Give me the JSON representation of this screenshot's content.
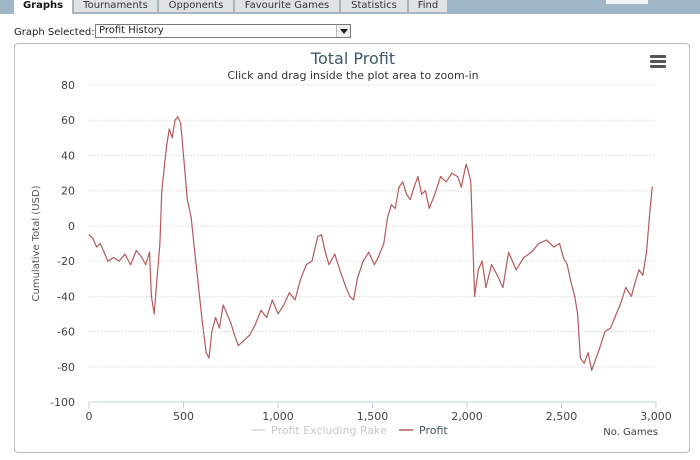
{
  "tabs": [
    {
      "label": "Graphs",
      "active": true
    },
    {
      "label": "Tournaments",
      "active": false
    },
    {
      "label": "Opponents",
      "active": false
    },
    {
      "label": "Favourite Games",
      "active": false
    },
    {
      "label": "Statistics",
      "active": false
    },
    {
      "label": "Find",
      "active": false
    }
  ],
  "graph_select": {
    "label": "Graph Selected:",
    "value": "Profit History"
  },
  "menu_icon": "hamburger-menu-icon",
  "colors": {
    "profit_line": "#b55a5a",
    "profit_excl_rake_line": "#d9d9d9",
    "title": "#3e576f",
    "tabbar": "#9fb7c6"
  },
  "chart_data": {
    "type": "line",
    "title": "Total Profit",
    "subtitle": "Click and drag inside the plot area to zoom-in",
    "xlabel": "No. Games",
    "ylabel": "Cumulative Total (USD)",
    "xlim": [
      0,
      3000
    ],
    "ylim": [
      -100,
      80
    ],
    "x_ticks": [
      "0",
      "500",
      "1,000",
      "1,500",
      "2,000",
      "2,500",
      "3,000"
    ],
    "y_ticks": [
      "80",
      "60",
      "40",
      "20",
      "0",
      "-20",
      "-40",
      "-60",
      "-80",
      "-100"
    ],
    "grid": "horizontal",
    "legend_position": "bottom-center",
    "series": [
      {
        "name": "Profit Excluding Rake",
        "visible": false,
        "x": [],
        "y": []
      },
      {
        "name": "Profit",
        "visible": true,
        "x": [
          0,
          20,
          40,
          60,
          80,
          100,
          130,
          160,
          190,
          220,
          250,
          280,
          300,
          320,
          330,
          345,
          360,
          375,
          385,
          395,
          410,
          425,
          440,
          455,
          470,
          485,
          500,
          520,
          540,
          560,
          580,
          600,
          620,
          635,
          650,
          670,
          690,
          710,
          730,
          750,
          770,
          790,
          820,
          850,
          880,
          910,
          940,
          970,
          1000,
          1030,
          1060,
          1090,
          1120,
          1150,
          1180,
          1210,
          1230,
          1250,
          1270,
          1300,
          1330,
          1360,
          1380,
          1400,
          1420,
          1450,
          1480,
          1510,
          1530,
          1560,
          1580,
          1600,
          1620,
          1640,
          1660,
          1680,
          1700,
          1720,
          1740,
          1760,
          1780,
          1800,
          1830,
          1860,
          1890,
          1920,
          1950,
          1970,
          1985,
          1995,
          2005,
          2020,
          2040,
          2060,
          2080,
          2100,
          2130,
          2160,
          2190,
          2220,
          2260,
          2300,
          2340,
          2380,
          2420,
          2460,
          2490,
          2510,
          2530,
          2550,
          2570,
          2585,
          2600,
          2620,
          2640,
          2660,
          2680,
          2700,
          2730,
          2760,
          2790,
          2810,
          2840,
          2870,
          2890,
          2910,
          2930,
          2950,
          2965,
          2980
        ],
        "y": [
          -5,
          -7,
          -12,
          -10,
          -15,
          -20,
          -18,
          -20,
          -16,
          -22,
          -14,
          -18,
          -22,
          -15,
          -40,
          -50,
          -30,
          -10,
          20,
          30,
          45,
          55,
          50,
          60,
          62,
          58,
          40,
          15,
          5,
          -15,
          -35,
          -55,
          -72,
          -75,
          -60,
          -52,
          -58,
          -45,
          -50,
          -55,
          -62,
          -68,
          -65,
          -62,
          -56,
          -48,
          -52,
          -42,
          -50,
          -45,
          -38,
          -42,
          -30,
          -22,
          -20,
          -6,
          -5,
          -15,
          -22,
          -16,
          -26,
          -35,
          -40,
          -42,
          -30,
          -20,
          -15,
          -22,
          -18,
          -10,
          5,
          12,
          10,
          22,
          25,
          18,
          15,
          22,
          28,
          18,
          20,
          10,
          18,
          28,
          25,
          30,
          28,
          22,
          30,
          35,
          32,
          25,
          -40,
          -25,
          -20,
          -35,
          -22,
          -28,
          -35,
          -15,
          -25,
          -18,
          -15,
          -10,
          -8,
          -12,
          -10,
          -18,
          -22,
          -32,
          -40,
          -50,
          -75,
          -78,
          -72,
          -82,
          -76,
          -70,
          -60,
          -58,
          -50,
          -45,
          -35,
          -40,
          -32,
          -25,
          -28,
          -15,
          5,
          22
        ]
      }
    ]
  }
}
